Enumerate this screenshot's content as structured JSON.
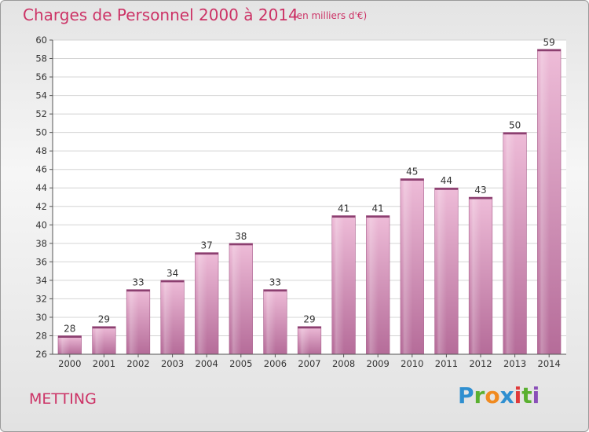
{
  "header": {
    "title": "Charges de Personnel 2000 à 2014",
    "subtitle": "(en milliers d'€)"
  },
  "footer": {
    "commune": "METTING",
    "logo": "Proxiti"
  },
  "colors": {
    "accent": "#cc3366",
    "bar_light": "#ecb7d5",
    "bar_dark": "#b86f9c"
  },
  "chart_data": {
    "type": "bar",
    "categories": [
      "2000",
      "2001",
      "2002",
      "2003",
      "2004",
      "2005",
      "2006",
      "2007",
      "2008",
      "2009",
      "2010",
      "2011",
      "2012",
      "2013",
      "2014"
    ],
    "values": [
      28,
      29,
      33,
      34,
      37,
      38,
      33,
      29,
      41,
      41,
      45,
      44,
      43,
      50,
      59
    ],
    "title": "Charges de Personnel 2000 à 2014",
    "ylim": [
      26,
      60
    ],
    "yticks": [
      26,
      28,
      30,
      32,
      34,
      36,
      38,
      40,
      42,
      44,
      46,
      48,
      50,
      52,
      54,
      56,
      58,
      60
    ],
    "grid": true,
    "data_labels": true
  }
}
